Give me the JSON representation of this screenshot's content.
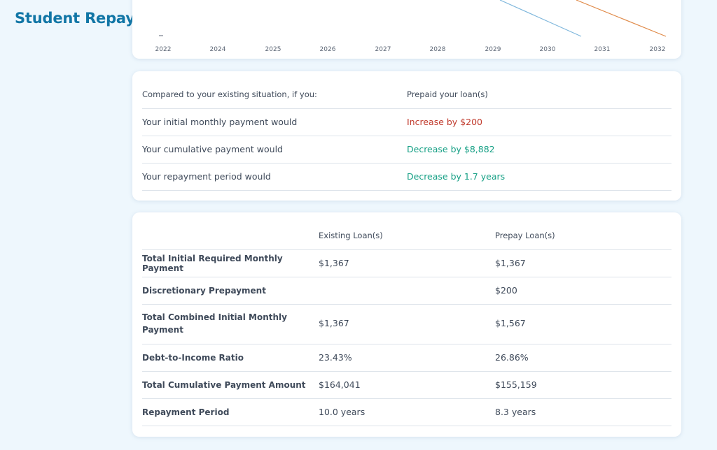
{
  "page": {
    "title": "Student Repayment Analysis"
  },
  "chart": {
    "x_labels": [
      "2022",
      "2024",
      "2025",
      "2026",
      "2027",
      "2028",
      "2029",
      "2030",
      "2031",
      "2032"
    ],
    "colors": {
      "existing": "#7fb7dc",
      "prepay": "#e08b4a"
    }
  },
  "comparison": {
    "header_left": "Compared to your existing situation, if you:",
    "header_right": "Prepaid your loan(s)",
    "rows": [
      {
        "label": "Your initial monthly payment would",
        "value": "Increase by $200",
        "tone": "red"
      },
      {
        "label": "Your cumulative payment would",
        "value": "Decrease by $8,882",
        "tone": "green"
      },
      {
        "label": "Your repayment period would",
        "value": "Decrease by 1.7 years",
        "tone": "green"
      }
    ]
  },
  "summary": {
    "col_existing": "Existing Loan(s)",
    "col_prepay": "Prepay Loan(s)",
    "rows": [
      {
        "label": "Total Initial Required Monthly Payment",
        "existing": "$1,367",
        "prepay": "$1,367"
      },
      {
        "label": "Discretionary Prepayment",
        "existing": "",
        "prepay": "$200"
      },
      {
        "label": "Total Combined Initial Monthly Payment",
        "existing": "$1,367",
        "prepay": "$1,567"
      },
      {
        "label": "Debt-to-Income Ratio",
        "existing": "23.43%",
        "prepay": "26.86%"
      },
      {
        "label": "Total Cumulative Payment Amount",
        "existing": "$164,041",
        "prepay": "$155,159"
      },
      {
        "label": "Repayment Period",
        "existing": "10.0 years",
        "prepay": "8.3 years"
      }
    ]
  }
}
